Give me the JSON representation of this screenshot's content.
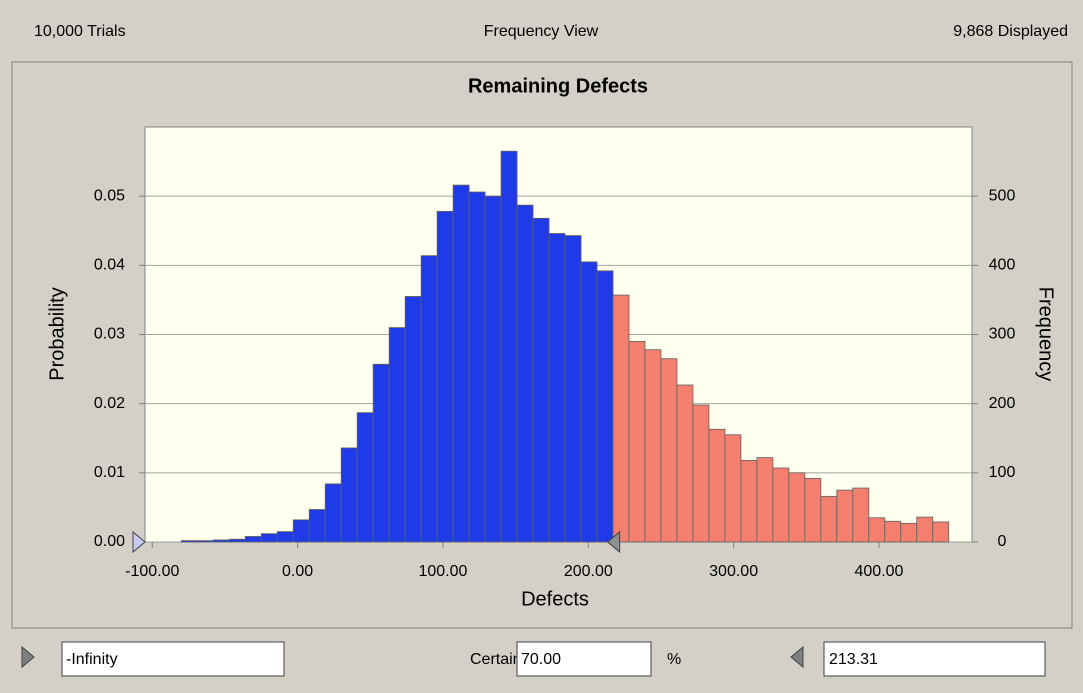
{
  "header": {
    "trials": "10,000 Trials",
    "view": "Frequency View",
    "displayed": "9,868 Displayed"
  },
  "chart_data": {
    "type": "histogram",
    "title": "Remaining Defects",
    "x_label": "Defects",
    "y_label": "Probability",
    "y2_label": "Frequency",
    "bins": [
      -80,
      -69,
      -58,
      -47,
      -36,
      -25,
      -14,
      -3,
      8,
      19,
      30,
      41,
      52,
      63,
      74,
      85,
      96,
      107,
      118,
      129,
      140,
      151,
      162,
      173,
      184,
      195,
      206,
      217,
      228,
      239,
      250,
      261,
      272,
      283,
      294,
      305,
      316,
      327,
      338,
      349,
      360,
      371,
      382,
      393,
      404,
      415,
      426,
      437,
      448
    ],
    "values": [
      0.0002,
      0.0002,
      0.0003,
      0.0004,
      0.0008,
      0.0012,
      0.0015,
      0.0032,
      0.0047,
      0.0084,
      0.0136,
      0.0187,
      0.0257,
      0.031,
      0.0355,
      0.0414,
      0.0478,
      0.0516,
      0.0506,
      0.05,
      0.0565,
      0.0487,
      0.0468,
      0.0446,
      0.0443,
      0.0405,
      0.0392,
      0.0357,
      0.029,
      0.0278,
      0.0265,
      0.0227,
      0.0198,
      0.0163,
      0.0155,
      0.0118,
      0.0122,
      0.0107,
      0.01,
      0.0092,
      0.0066,
      0.0075,
      0.0078,
      0.0035,
      0.003,
      0.0027,
      0.0036,
      0.0029
    ],
    "color": "#1f3ae6",
    "outside_color": "#f47f6f",
    "background": "#fffff0",
    "xlim": [
      -105,
      464
    ],
    "xticks": [
      {
        "value": -100,
        "label": "-100.00"
      },
      {
        "value": 0,
        "label": "0.00"
      },
      {
        "value": 100,
        "label": "100.00"
      },
      {
        "value": 200,
        "label": "200.00"
      },
      {
        "value": 300,
        "label": "300.00"
      },
      {
        "value": 400,
        "label": "400.00"
      }
    ],
    "ylim": [
      0,
      0.06
    ],
    "yticks": [
      {
        "value": 0,
        "label": "0.00"
      },
      0.01,
      0.02,
      0.03,
      0.04,
      0.05
    ],
    "y2lim": [
      0,
      600
    ],
    "y2ticks": [
      0,
      100,
      200,
      300,
      400,
      500
    ],
    "grid": true
  },
  "footer": {
    "lower": "-Infinity",
    "certainty_label": "Certainty:",
    "certainty": "70.00",
    "percent": "%",
    "upper": 213.31
  }
}
